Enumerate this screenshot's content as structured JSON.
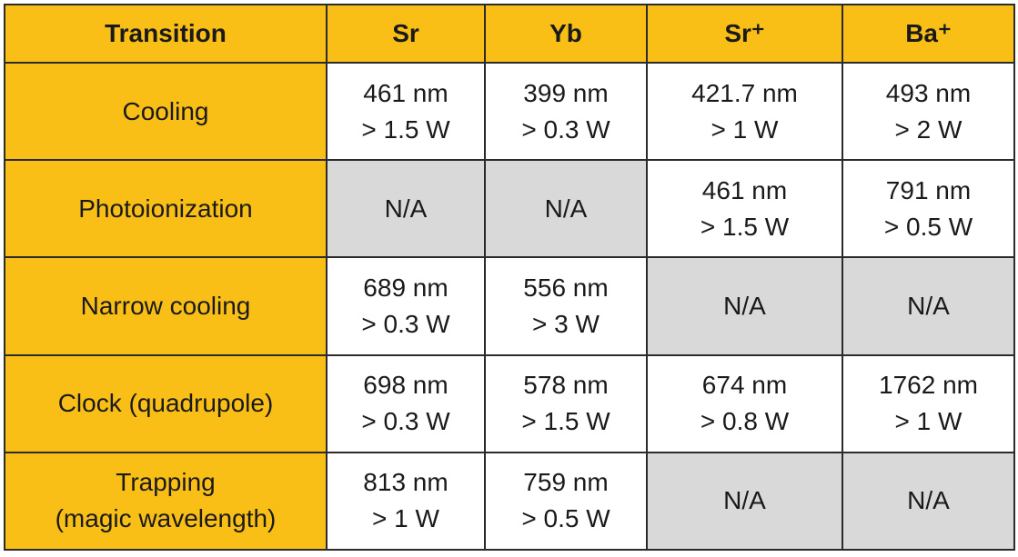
{
  "table": {
    "header": [
      "Transition",
      "Sr",
      "Yb",
      "Sr⁺",
      "Ba⁺"
    ],
    "rows": [
      {
        "label": [
          "Cooling"
        ],
        "cells": [
          [
            "461 nm",
            "> 1.5 W"
          ],
          [
            "399 nm",
            "> 0.3 W"
          ],
          [
            "421.7 nm",
            "> 1 W"
          ],
          [
            "493 nm",
            "> 2 W"
          ]
        ]
      },
      {
        "label": [
          "Photoionization"
        ],
        "cells": [
          [
            "N/A"
          ],
          [
            "N/A"
          ],
          [
            "461 nm",
            "> 1.5 W"
          ],
          [
            "791 nm",
            "> 0.5 W"
          ]
        ]
      },
      {
        "label": [
          "Narrow cooling"
        ],
        "cells": [
          [
            "689 nm",
            "> 0.3 W"
          ],
          [
            "556 nm",
            "> 3 W"
          ],
          [
            "N/A"
          ],
          [
            "N/A"
          ]
        ]
      },
      {
        "label": [
          "Clock (quadrupole)"
        ],
        "cells": [
          [
            "698 nm",
            "> 0.3 W"
          ],
          [
            "578 nm",
            "> 1.5 W"
          ],
          [
            "674 nm",
            "> 0.8 W"
          ],
          [
            "1762 nm",
            "> 1 W"
          ]
        ]
      },
      {
        "label": [
          "Trapping",
          "(magic wavelength)"
        ],
        "cells": [
          [
            "813 nm",
            "> 1 W"
          ],
          [
            "759 nm",
            "> 0.5 W"
          ],
          [
            "N/A"
          ],
          [
            "N/A"
          ]
        ]
      }
    ]
  }
}
